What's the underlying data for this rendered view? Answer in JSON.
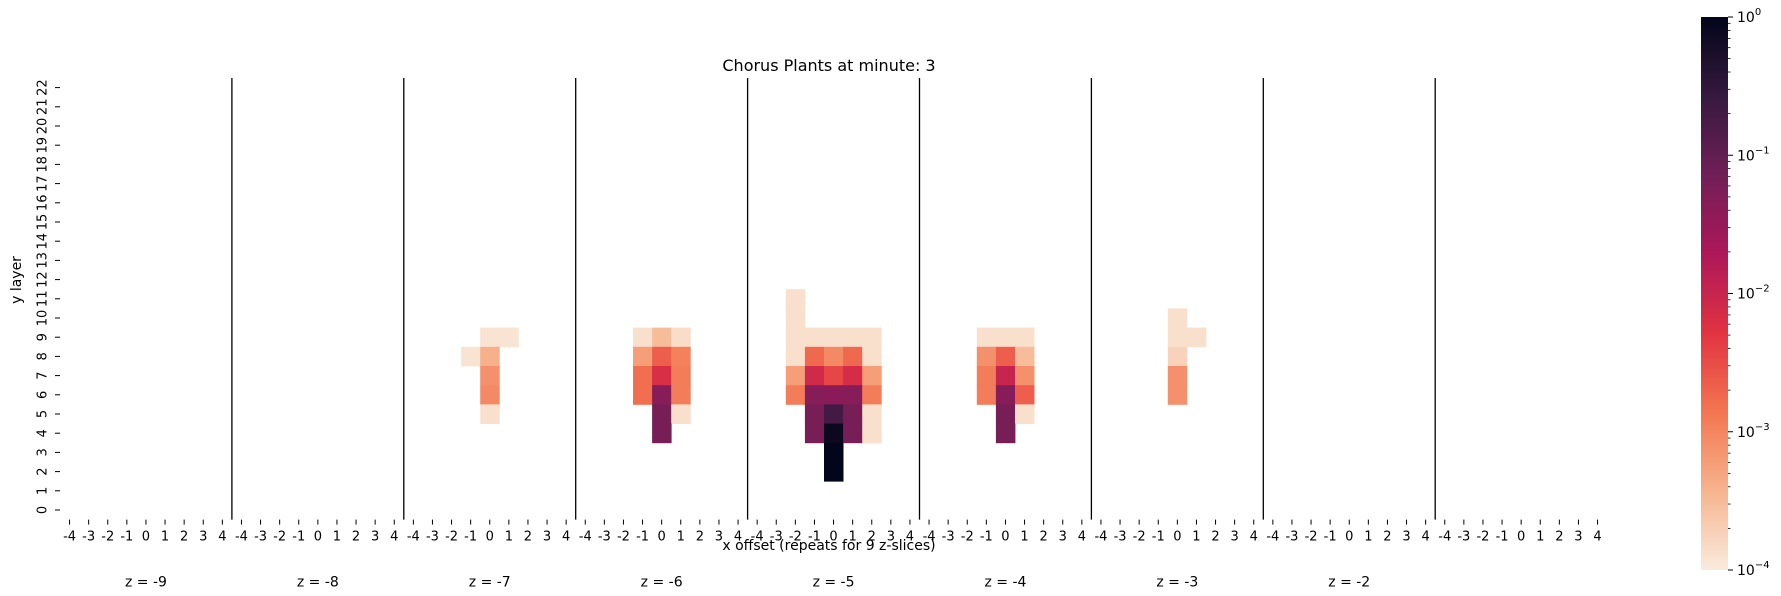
{
  "chart_data": {
    "type": "heatmap",
    "title": "Chorus Plants at minute: 3",
    "xlabel": "x offset (repeats for 9 z-slices)",
    "ylabel": "y layer",
    "x_ticks": [
      "-4",
      "-3",
      "-2",
      "-1",
      "0",
      "1",
      "2",
      "3",
      "4"
    ],
    "y_ticks": [
      "0",
      "1",
      "2",
      "3",
      "4",
      "5",
      "6",
      "7",
      "8",
      "9",
      "10",
      "11",
      "12",
      "13",
      "14",
      "15",
      "16",
      "17",
      "18",
      "19",
      "20",
      "21",
      "22"
    ],
    "z_slices": [
      "z = -9",
      "z = -8",
      "z = -7",
      "z = -6",
      "z = -5",
      "z = -4",
      "z = -3",
      "z = -2",
      ""
    ],
    "colorbar": {
      "scale": "log",
      "min": 0.0001,
      "max": 1,
      "tick_labels": [
        {
          "base": "10",
          "exp": "0"
        },
        {
          "base": "10",
          "exp": "−1"
        },
        {
          "base": "10",
          "exp": "−2"
        },
        {
          "base": "10",
          "exp": "−3"
        },
        {
          "base": "10",
          "exp": "−4"
        }
      ],
      "colors": [
        "#faebdd",
        "#f6b48e",
        "#f37651",
        "#e13342",
        "#ad1759",
        "#701f57",
        "#35193e",
        "#03051a"
      ]
    },
    "cells": [
      {
        "z": -7,
        "x": 0,
        "y": 9,
        "v": 0.00012
      },
      {
        "z": -7,
        "x": 1,
        "y": 9,
        "v": 0.00012
      },
      {
        "z": -7,
        "x": -1,
        "y": 8,
        "v": 0.00012
      },
      {
        "z": -7,
        "x": 0,
        "y": 8,
        "v": 0.0004
      },
      {
        "z": -7,
        "x": 0,
        "y": 7,
        "v": 0.0008
      },
      {
        "z": -7,
        "x": 0,
        "y": 6,
        "v": 0.0009
      },
      {
        "z": -7,
        "x": 0,
        "y": 5,
        "v": 0.00013
      },
      {
        "z": -6,
        "x": -1,
        "y": 9,
        "v": 0.00013
      },
      {
        "z": -6,
        "x": 0,
        "y": 9,
        "v": 0.0003
      },
      {
        "z": -6,
        "x": 1,
        "y": 9,
        "v": 0.00014
      },
      {
        "z": -6,
        "x": -1,
        "y": 8,
        "v": 0.0006
      },
      {
        "z": -6,
        "x": 0,
        "y": 8,
        "v": 0.0022
      },
      {
        "z": -6,
        "x": 1,
        "y": 8,
        "v": 0.0011
      },
      {
        "z": -6,
        "x": -1,
        "y": 7,
        "v": 0.0016
      },
      {
        "z": -6,
        "x": 0,
        "y": 7,
        "v": 0.0065
      },
      {
        "z": -6,
        "x": 1,
        "y": 7,
        "v": 0.0012
      },
      {
        "z": -6,
        "x": -1,
        "y": 6,
        "v": 0.0016
      },
      {
        "z": -6,
        "x": 0,
        "y": 6,
        "v": 0.045
      },
      {
        "z": -6,
        "x": 1,
        "y": 6,
        "v": 0.0012
      },
      {
        "z": -6,
        "x": 0,
        "y": 5,
        "v": 0.06
      },
      {
        "z": -6,
        "x": 1,
        "y": 5,
        "v": 0.00013
      },
      {
        "z": -6,
        "x": 0,
        "y": 4,
        "v": 0.06
      },
      {
        "z": -5,
        "x": -2,
        "y": 11,
        "v": 0.00013
      },
      {
        "z": -5,
        "x": -2,
        "y": 10,
        "v": 0.00013
      },
      {
        "z": -5,
        "x": -2,
        "y": 9,
        "v": 0.00013
      },
      {
        "z": -5,
        "x": -1,
        "y": 9,
        "v": 0.00013
      },
      {
        "z": -5,
        "x": 0,
        "y": 9,
        "v": 0.00013
      },
      {
        "z": -5,
        "x": 1,
        "y": 9,
        "v": 0.00013
      },
      {
        "z": -5,
        "x": 2,
        "y": 9,
        "v": 0.00013
      },
      {
        "z": -5,
        "x": -2,
        "y": 8,
        "v": 0.00013
      },
      {
        "z": -5,
        "x": -1,
        "y": 8,
        "v": 0.0018
      },
      {
        "z": -5,
        "x": 0,
        "y": 8,
        "v": 0.0009
      },
      {
        "z": -5,
        "x": 1,
        "y": 8,
        "v": 0.0018
      },
      {
        "z": -5,
        "x": 2,
        "y": 8,
        "v": 0.00013
      },
      {
        "z": -5,
        "x": -2,
        "y": 7,
        "v": 0.0006
      },
      {
        "z": -5,
        "x": -1,
        "y": 7,
        "v": 0.008
      },
      {
        "z": -5,
        "x": 0,
        "y": 7,
        "v": 0.0035
      },
      {
        "z": -5,
        "x": 1,
        "y": 7,
        "v": 0.007
      },
      {
        "z": -5,
        "x": 2,
        "y": 7,
        "v": 0.0006
      },
      {
        "z": -5,
        "x": -2,
        "y": 6,
        "v": 0.0012
      },
      {
        "z": -5,
        "x": -1,
        "y": 6,
        "v": 0.045
      },
      {
        "z": -5,
        "x": 0,
        "y": 6,
        "v": 0.04
      },
      {
        "z": -5,
        "x": 1,
        "y": 6,
        "v": 0.045
      },
      {
        "z": -5,
        "x": 2,
        "y": 6,
        "v": 0.0012
      },
      {
        "z": -5,
        "x": -1,
        "y": 5,
        "v": 0.06
      },
      {
        "z": -5,
        "x": 0,
        "y": 5,
        "v": 0.2
      },
      {
        "z": -5,
        "x": 1,
        "y": 5,
        "v": 0.06
      },
      {
        "z": -5,
        "x": 2,
        "y": 5,
        "v": 0.00013
      },
      {
        "z": -5,
        "x": -1,
        "y": 4,
        "v": 0.06
      },
      {
        "z": -5,
        "x": 0,
        "y": 4,
        "v": 0.8
      },
      {
        "z": -5,
        "x": 1,
        "y": 4,
        "v": 0.06
      },
      {
        "z": -5,
        "x": 2,
        "y": 4,
        "v": 0.00013
      },
      {
        "z": -5,
        "x": 0,
        "y": 3,
        "v": 1.0
      },
      {
        "z": -5,
        "x": 0,
        "y": 2,
        "v": 1.0
      },
      {
        "z": -4,
        "x": -1,
        "y": 9,
        "v": 0.00013
      },
      {
        "z": -4,
        "x": 0,
        "y": 9,
        "v": 0.00013
      },
      {
        "z": -4,
        "x": 1,
        "y": 9,
        "v": 0.00013
      },
      {
        "z": -4,
        "x": -1,
        "y": 8,
        "v": 0.0008
      },
      {
        "z": -4,
        "x": 0,
        "y": 8,
        "v": 0.0022
      },
      {
        "z": -4,
        "x": 1,
        "y": 8,
        "v": 0.0003
      },
      {
        "z": -4,
        "x": -1,
        "y": 7,
        "v": 0.0012
      },
      {
        "z": -4,
        "x": 0,
        "y": 7,
        "v": 0.01
      },
      {
        "z": -4,
        "x": 1,
        "y": 7,
        "v": 0.0008
      },
      {
        "z": -4,
        "x": -1,
        "y": 6,
        "v": 0.0012
      },
      {
        "z": -4,
        "x": 0,
        "y": 6,
        "v": 0.045
      },
      {
        "z": -4,
        "x": 1,
        "y": 6,
        "v": 0.0022
      },
      {
        "z": -4,
        "x": 0,
        "y": 5,
        "v": 0.06
      },
      {
        "z": -4,
        "x": 1,
        "y": 5,
        "v": 0.00013
      },
      {
        "z": -4,
        "x": 0,
        "y": 4,
        "v": 0.06
      },
      {
        "z": -3,
        "x": 0,
        "y": 10,
        "v": 0.00013
      },
      {
        "z": -3,
        "x": 0,
        "y": 9,
        "v": 0.00013
      },
      {
        "z": -3,
        "x": 1,
        "y": 9,
        "v": 0.00013
      },
      {
        "z": -3,
        "x": 0,
        "y": 8,
        "v": 0.00018
      },
      {
        "z": -3,
        "x": 0,
        "y": 7,
        "v": 0.0008
      },
      {
        "z": -3,
        "x": 0,
        "y": 6,
        "v": 0.0008
      }
    ]
  }
}
